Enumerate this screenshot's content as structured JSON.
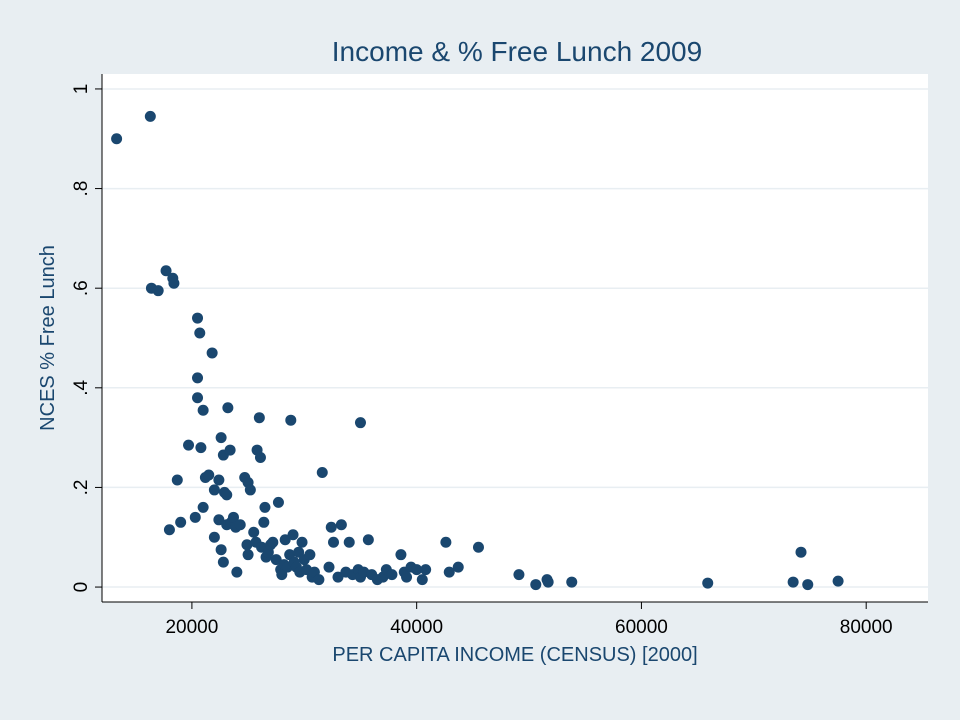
{
  "chart_data": {
    "type": "scatter",
    "title": "Income & % Free Lunch 2009",
    "xlabel": "PER CAPITA INCOME (CENSUS) [2000]",
    "ylabel": "NCES % Free Lunch",
    "xlim": [
      12000,
      85500
    ],
    "ylim": [
      -0.03,
      1.03
    ],
    "xticks": [
      20000,
      40000,
      60000,
      80000
    ],
    "xtick_labels": [
      "20000",
      "40000",
      "60000",
      "80000"
    ],
    "yticks": [
      0,
      0.2,
      0.4,
      0.6,
      0.8,
      1
    ],
    "ytick_labels": [
      "0",
      ".2",
      ".4",
      ".6",
      ".8",
      "1"
    ],
    "grid": true,
    "legend": "none",
    "colors": {
      "outer_background": "#e8eef2",
      "plot_background": "#ffffff",
      "gridline": "#e8eef2",
      "marker": "#1a476f",
      "text": "#1a476f",
      "axis": "#000000"
    },
    "points": [
      [
        13300,
        0.9
      ],
      [
        16300,
        0.945
      ],
      [
        16400,
        0.6
      ],
      [
        17000,
        0.595
      ],
      [
        17700,
        0.635
      ],
      [
        18300,
        0.62
      ],
      [
        18400,
        0.61
      ],
      [
        18700,
        0.215
      ],
      [
        19000,
        0.13
      ],
      [
        18000,
        0.115
      ],
      [
        19700,
        0.285
      ],
      [
        20300,
        0.14
      ],
      [
        20500,
        0.54
      ],
      [
        20700,
        0.51
      ],
      [
        20500,
        0.42
      ],
      [
        20500,
        0.38
      ],
      [
        20800,
        0.28
      ],
      [
        21000,
        0.355
      ],
      [
        21000,
        0.16
      ],
      [
        21200,
        0.22
      ],
      [
        21500,
        0.225
      ],
      [
        21800,
        0.47
      ],
      [
        22000,
        0.195
      ],
      [
        22000,
        0.1
      ],
      [
        22400,
        0.135
      ],
      [
        22400,
        0.215
      ],
      [
        22600,
        0.3
      ],
      [
        22600,
        0.075
      ],
      [
        22800,
        0.265
      ],
      [
        22800,
        0.05
      ],
      [
        22900,
        0.19
      ],
      [
        23100,
        0.185
      ],
      [
        23100,
        0.125
      ],
      [
        23200,
        0.36
      ],
      [
        23400,
        0.275
      ],
      [
        23500,
        0.13
      ],
      [
        23700,
        0.14
      ],
      [
        23900,
        0.12
      ],
      [
        24000,
        0.03
      ],
      [
        24300,
        0.125
      ],
      [
        24700,
        0.22
      ],
      [
        24900,
        0.085
      ],
      [
        25000,
        0.21
      ],
      [
        25200,
        0.195
      ],
      [
        25000,
        0.065
      ],
      [
        25500,
        0.11
      ],
      [
        25700,
        0.09
      ],
      [
        25800,
        0.275
      ],
      [
        26000,
        0.34
      ],
      [
        26100,
        0.26
      ],
      [
        26200,
        0.08
      ],
      [
        26400,
        0.13
      ],
      [
        26500,
        0.16
      ],
      [
        26600,
        0.06
      ],
      [
        26800,
        0.07
      ],
      [
        27000,
        0.085
      ],
      [
        27200,
        0.09
      ],
      [
        27500,
        0.055
      ],
      [
        27700,
        0.17
      ],
      [
        27900,
        0.035
      ],
      [
        28000,
        0.025
      ],
      [
        28200,
        0.045
      ],
      [
        28300,
        0.095
      ],
      [
        28500,
        0.04
      ],
      [
        28700,
        0.065
      ],
      [
        28800,
        0.335
      ],
      [
        29000,
        0.105
      ],
      [
        29100,
        0.05
      ],
      [
        29300,
        0.04
      ],
      [
        29500,
        0.07
      ],
      [
        29600,
        0.03
      ],
      [
        29800,
        0.09
      ],
      [
        30000,
        0.055
      ],
      [
        30200,
        0.035
      ],
      [
        30500,
        0.065
      ],
      [
        30700,
        0.02
      ],
      [
        30900,
        0.03
      ],
      [
        31300,
        0.015
      ],
      [
        31600,
        0.23
      ],
      [
        32200,
        0.04
      ],
      [
        32400,
        0.12
      ],
      [
        32600,
        0.09
      ],
      [
        33000,
        0.02
      ],
      [
        33300,
        0.125
      ],
      [
        33700,
        0.03
      ],
      [
        34000,
        0.09
      ],
      [
        34300,
        0.025
      ],
      [
        34800,
        0.035
      ],
      [
        35000,
        0.33
      ],
      [
        35000,
        0.02
      ],
      [
        35300,
        0.03
      ],
      [
        35700,
        0.095
      ],
      [
        36000,
        0.025
      ],
      [
        36500,
        0.015
      ],
      [
        37000,
        0.02
      ],
      [
        37300,
        0.035
      ],
      [
        37800,
        0.025
      ],
      [
        38600,
        0.065
      ],
      [
        38900,
        0.03
      ],
      [
        39100,
        0.02
      ],
      [
        39500,
        0.04
      ],
      [
        40000,
        0.035
      ],
      [
        40500,
        0.015
      ],
      [
        40800,
        0.035
      ],
      [
        42600,
        0.09
      ],
      [
        42900,
        0.03
      ],
      [
        43700,
        0.04
      ],
      [
        45500,
        0.08
      ],
      [
        49100,
        0.025
      ],
      [
        50600,
        0.005
      ],
      [
        51600,
        0.015
      ],
      [
        51700,
        0.01
      ],
      [
        53800,
        0.01
      ],
      [
        65900,
        0.008
      ],
      [
        73500,
        0.01
      ],
      [
        74200,
        0.07
      ],
      [
        74800,
        0.005
      ],
      [
        77500,
        0.012
      ]
    ]
  }
}
